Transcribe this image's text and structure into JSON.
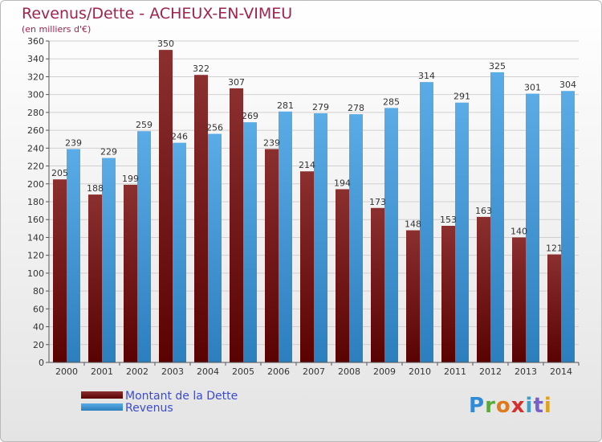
{
  "title": "Revenus/Dette - ACHEUX-EN-VIMEU",
  "subtitle": "(en milliers d'€)",
  "logo_text": "Proxiti",
  "colors": {
    "debt_top": "#8b2f2f",
    "debt_bottom": "#5a0202",
    "revenue_top": "#5aace6",
    "revenue_bottom": "#2c7fbd",
    "title": "#a0234f",
    "legend_text": "#3b4bd0"
  },
  "chart_data": {
    "type": "bar",
    "title": "Revenus/Dette - ACHEUX-EN-VIMEU",
    "xlabel": "",
    "ylabel": "(en milliers d'€)",
    "ylim": [
      0,
      360
    ],
    "ytick_step": 20,
    "grid": true,
    "legend_position": "bottom-left",
    "categories": [
      "2000",
      "2001",
      "2002",
      "2003",
      "2004",
      "2005",
      "2006",
      "2007",
      "2008",
      "2009",
      "2010",
      "2011",
      "2012",
      "2013",
      "2014"
    ],
    "series": [
      {
        "name": "Montant de la Dette",
        "values": [
          205,
          188,
          199,
          350,
          322,
          307,
          239,
          214,
          194,
          173,
          148,
          153,
          163,
          140,
          121
        ]
      },
      {
        "name": "Revenus",
        "values": [
          239,
          229,
          259,
          246,
          256,
          269,
          281,
          279,
          278,
          285,
          314,
          291,
          325,
          301,
          304
        ]
      }
    ]
  }
}
